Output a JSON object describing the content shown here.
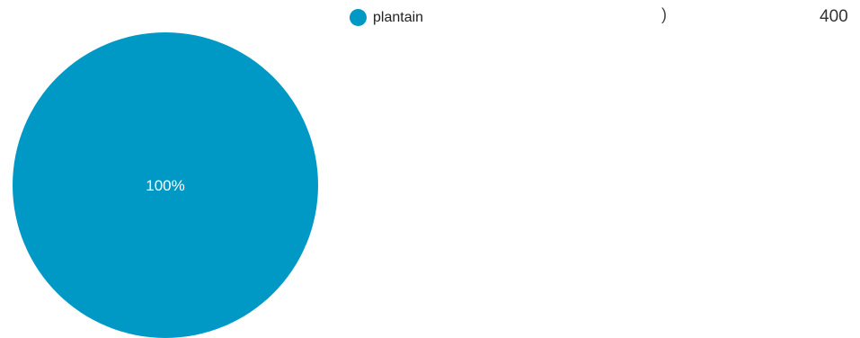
{
  "chart_data": {
    "type": "pie",
    "title": "",
    "categories": [
      "plantain"
    ],
    "values": [
      100
    ],
    "slice_labels": [
      "100%"
    ],
    "colors": [
      "#0099c6"
    ],
    "legend": {
      "placement": "top",
      "entries": [
        "plantain"
      ]
    }
  },
  "fragments": {
    "stray_mark": ")",
    "top_value": "400"
  }
}
